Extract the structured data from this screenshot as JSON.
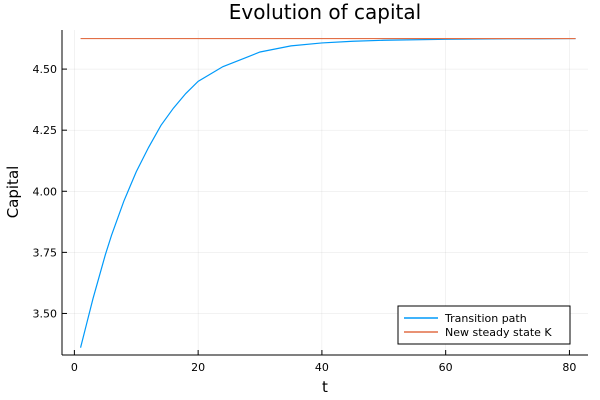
{
  "chart_data": {
    "type": "line",
    "title": "Evolution of capital",
    "xlabel": "t",
    "ylabel": "Capital",
    "xlim": [
      -2,
      83
    ],
    "ylim": [
      3.33,
      4.66
    ],
    "xticks": [
      0,
      20,
      40,
      60,
      80
    ],
    "yticks": [
      3.5,
      3.75,
      4.0,
      4.25,
      4.5
    ],
    "xtick_labels": [
      "0",
      "20",
      "40",
      "60",
      "80"
    ],
    "ytick_labels": [
      "3.50",
      "3.75",
      "4.00",
      "4.25",
      "4.50"
    ],
    "grid": true,
    "legend_position": "bottom-right",
    "series": [
      {
        "name": "Transition path",
        "color": "#009AFA",
        "x": [
          1,
          2,
          3,
          4,
          5,
          6,
          7,
          8,
          9,
          10,
          11,
          12,
          14,
          16,
          18,
          20,
          22,
          24,
          26,
          28,
          30,
          35,
          40,
          45,
          50,
          55,
          60,
          65,
          70,
          75,
          81
        ],
        "y": [
          3.36,
          3.46,
          3.56,
          3.65,
          3.74,
          3.82,
          3.89,
          3.96,
          4.02,
          4.08,
          4.13,
          4.18,
          4.27,
          4.34,
          4.4,
          4.45,
          4.48,
          4.51,
          4.53,
          4.55,
          4.57,
          4.595,
          4.607,
          4.614,
          4.618,
          4.62,
          4.622,
          4.623,
          4.624,
          4.624,
          4.625
        ]
      },
      {
        "name": "New steady state K",
        "color": "#E26F46",
        "x": [
          1,
          81
        ],
        "y": [
          4.625,
          4.625
        ]
      }
    ]
  }
}
